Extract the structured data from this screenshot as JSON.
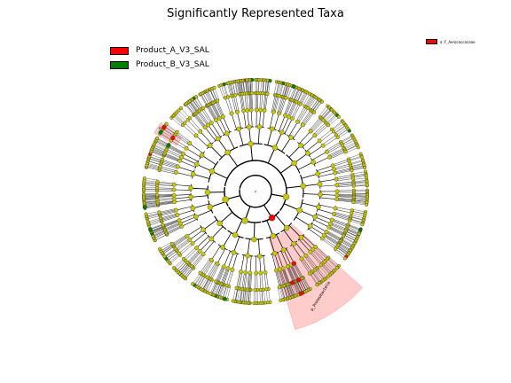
{
  "title": "Significantly Represented Taxa",
  "legend": [
    {
      "label": "Product_A_V3_SAL",
      "color": "#ff0000"
    },
    {
      "label": "Product_B_V3_SAL",
      "color": "#008000"
    }
  ],
  "clade_legend": {
    "label": "a: F_Aerococcaceae",
    "color": "#ff0000"
  },
  "highlighted_clades": [
    {
      "label": "a",
      "color": "#ff0000"
    },
    {
      "label": "p_Proteobacteria",
      "color": "#ff0000"
    }
  ],
  "colors": {
    "node": "#c8c800",
    "product_a": "#ff0000",
    "product_b": "#008000",
    "shade": "#ffcccc"
  }
}
